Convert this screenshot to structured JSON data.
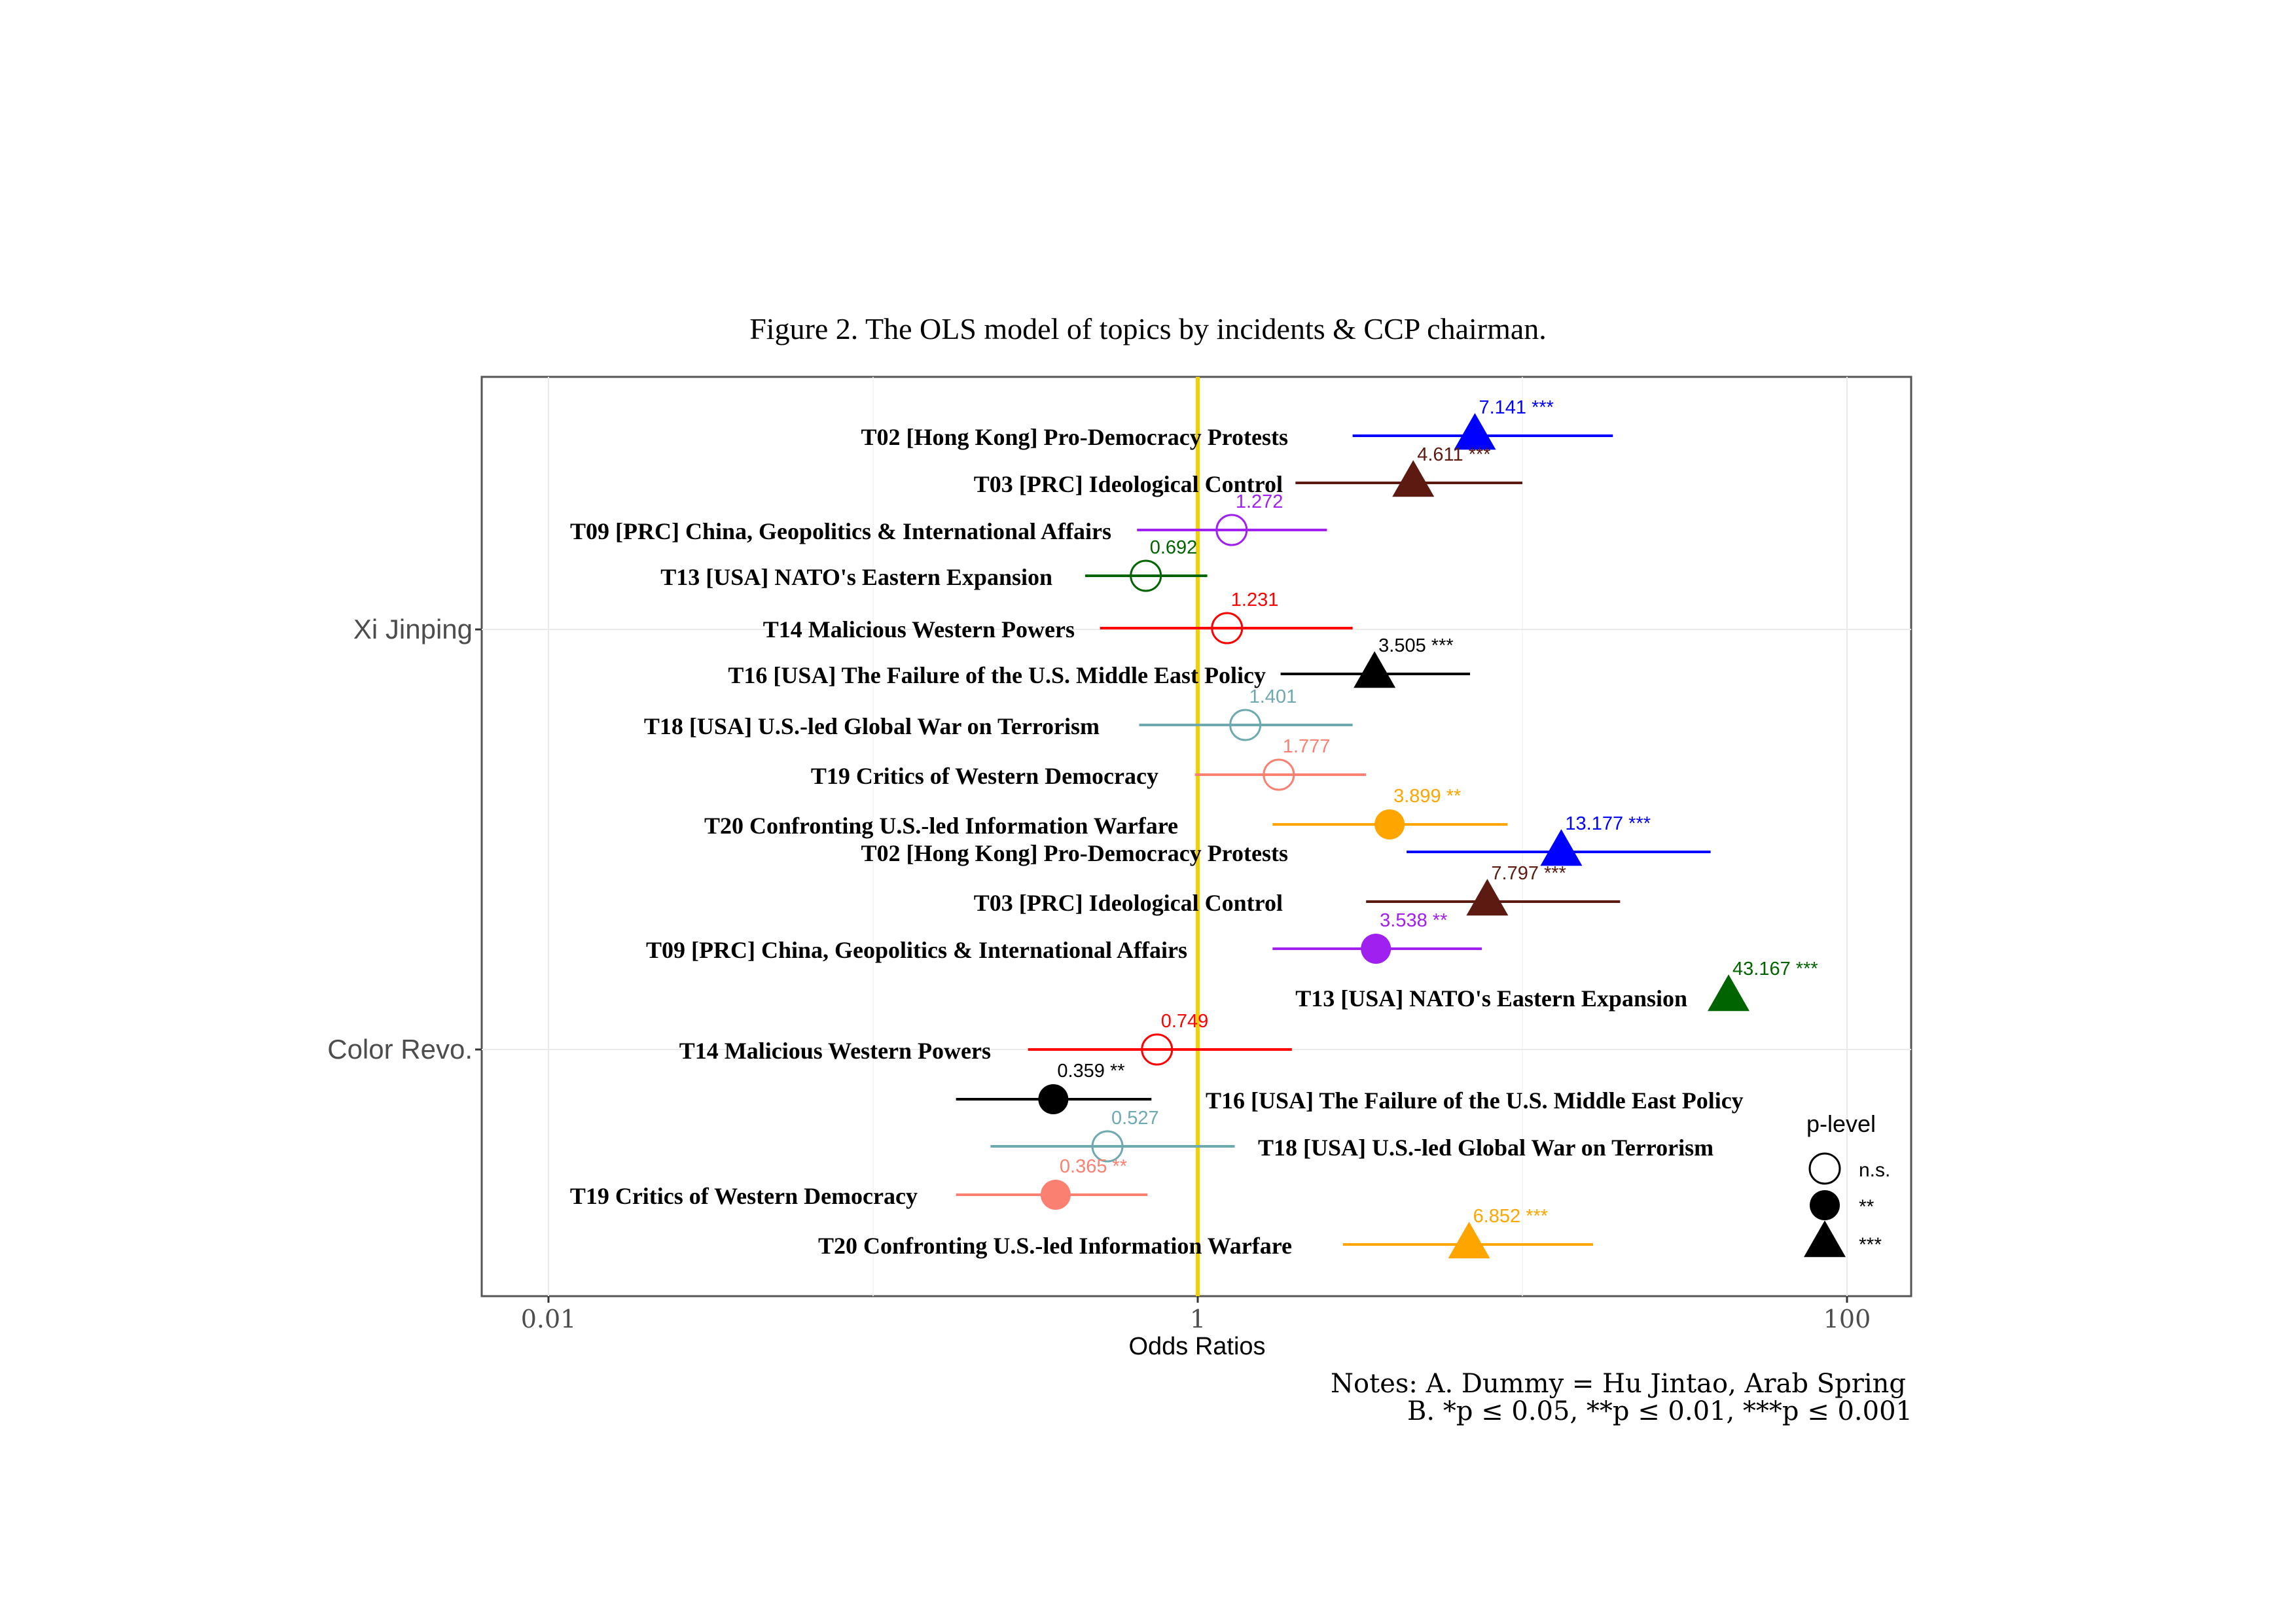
{
  "figure_title": "Figure 2. The OLS model of topics by incidents & CCP chairman.",
  "notes": {
    "line_a": "Notes: A. Dummy = Hu Jintao, Arab Spring",
    "line_b": "B. *p ≤ 0.05, **p ≤ 0.01, ***p ≤ 0.001"
  },
  "legend": {
    "title": "p-level",
    "items": [
      {
        "label": "n.s.",
        "shape": "open-circle"
      },
      {
        "label": "**",
        "shape": "filled-circle"
      },
      {
        "label": "***",
        "shape": "triangle"
      }
    ]
  },
  "colors": {
    "T02": "#0000ff",
    "T03": "#5c1a10",
    "T09": "#a020f0",
    "T13": "#006400",
    "T14": "#ff0000",
    "T16": "#000000",
    "T18": "#6fa9b0",
    "T19": "#fa8072",
    "T20": "#ffa500",
    "reference_line": "#f5d000"
  },
  "chart_data": {
    "type": "scatter",
    "title": "Figure 2. The OLS model of topics by incidents & CCP chairman.",
    "xlabel": "Odds Ratios",
    "ylabel": "",
    "x_scale": "log10",
    "xlim": [
      0.003,
      150
    ],
    "x_ticks": [
      {
        "value": 0.01,
        "label": "0.01"
      },
      {
        "value": 1,
        "label": "1"
      },
      {
        "value": 100,
        "label": "100"
      }
    ],
    "reference_line": 1,
    "grid": true,
    "legend_position": "right",
    "groups": [
      {
        "name": "Xi Jinping",
        "points": [
          {
            "topic": "T02 [Hong Kong] Pro-Democracy Protests",
            "color": "T02",
            "or": 7.141,
            "ci": [
              3.0,
              19.0
            ],
            "sig": "***",
            "label": "7.141 ***"
          },
          {
            "topic": "T03 [PRC] Ideological Control",
            "color": "T03",
            "or": 4.611,
            "ci": [
              2.0,
              10.0
            ],
            "sig": "***",
            "label": "4.611 ***"
          },
          {
            "topic": "T09 [PRC] China, Geopolitics & International Affairs",
            "color": "T09",
            "or": 1.272,
            "ci": [
              0.65,
              2.5
            ],
            "sig": "n.s.",
            "label": "1.272"
          },
          {
            "topic": "T13 [USA] NATO's Eastern Expansion",
            "color": "T13",
            "or": 0.692,
            "ci": [
              0.45,
              1.07
            ],
            "sig": "n.s.",
            "label": "0.692"
          },
          {
            "topic": "T14 Malicious Western Powers",
            "color": "T14",
            "or": 1.231,
            "ci": [
              0.5,
              3.0
            ],
            "sig": "n.s.",
            "label": "1.231"
          },
          {
            "topic": "T16 [USA] The Failure of the U.S. Middle East Policy",
            "color": "T16",
            "or": 3.505,
            "ci": [
              1.8,
              6.9
            ],
            "sig": "***",
            "label": "3.505 ***"
          },
          {
            "topic": "T18 [USA] U.S.-led Global War on Terrorism",
            "color": "T18",
            "or": 1.401,
            "ci": [
              0.66,
              3.0
            ],
            "sig": "n.s.",
            "label": "1.401"
          },
          {
            "topic": "T19 Critics of Western Democracy",
            "color": "T19",
            "or": 1.777,
            "ci": [
              0.98,
              3.3
            ],
            "sig": "n.s.",
            "label": "1.777"
          },
          {
            "topic": "T20 Confronting U.S.-led Information Warfare",
            "color": "T20",
            "or": 3.899,
            "ci": [
              1.7,
              9.0
            ],
            "sig": "**",
            "label": "3.899 **"
          }
        ]
      },
      {
        "name": "Color Revo.",
        "points": [
          {
            "topic": "T02 [Hong Kong] Pro-Democracy Protests",
            "color": "T02",
            "or": 13.177,
            "ci": [
              4.4,
              38.0
            ],
            "sig": "***",
            "label": "13.177 ***"
          },
          {
            "topic": "T03 [PRC] Ideological Control",
            "color": "T03",
            "or": 7.797,
            "ci": [
              3.3,
              20.0
            ],
            "sig": "***",
            "label": "7.797 ***"
          },
          {
            "topic": "T09 [PRC] China, Geopolitics & International Affairs",
            "color": "T09",
            "or": 3.538,
            "ci": [
              1.7,
              7.5
            ],
            "sig": "**",
            "label": "3.538 **"
          },
          {
            "topic": "T13 [USA] NATO's Eastern Expansion",
            "color": "T13",
            "or": 43.167,
            "ci": null,
            "sig": "***",
            "label": "43.167 ***"
          },
          {
            "topic": "T14 Malicious Western Powers",
            "color": "T14",
            "or": 0.749,
            "ci": [
              0.3,
              1.95
            ],
            "sig": "n.s.",
            "label": "0.749"
          },
          {
            "topic": "T16 [USA] The Failure of the U.S. Middle East Policy",
            "color": "T16",
            "or": 0.359,
            "ci": [
              0.18,
              0.72
            ],
            "sig": "**",
            "label": "0.359 **"
          },
          {
            "topic": "T18 [USA] U.S.-led Global War on Terrorism",
            "color": "T18",
            "or": 0.527,
            "ci": [
              0.23,
              1.3
            ],
            "sig": "n.s.",
            "label": "0.527"
          },
          {
            "topic": "T19 Critics of Western Democracy",
            "color": "T19",
            "or": 0.365,
            "ci": [
              0.18,
              0.7
            ],
            "sig": "**",
            "label": "0.365 **"
          },
          {
            "topic": "T20 Confronting U.S.-led Information Warfare",
            "color": "T20",
            "or": 6.852,
            "ci": [
              2.8,
              16.5
            ],
            "sig": "***",
            "label": "6.852 ***"
          }
        ]
      }
    ]
  }
}
